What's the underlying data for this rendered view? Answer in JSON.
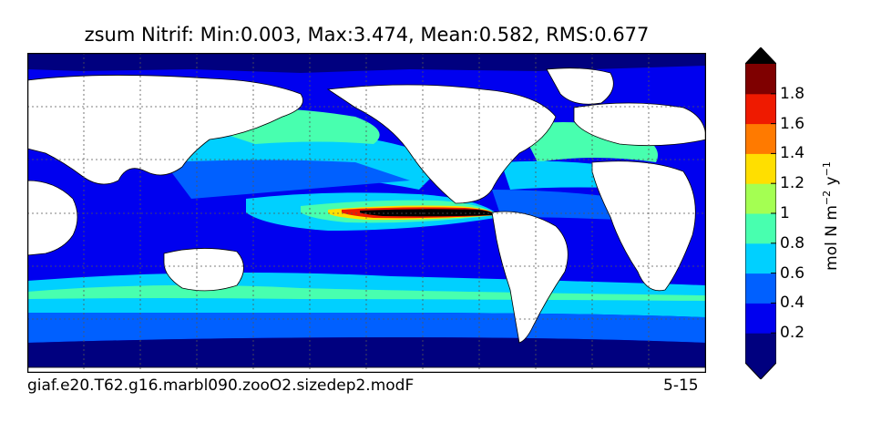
{
  "title": "zsum Nitrif: Min:0.003, Max:3.474, Mean:0.582, RMS:0.677",
  "footer": {
    "run_name": "giaf.e20.T62.g16.marbl090.zooO2.sizedep2.modF",
    "depth_range": "5-15"
  },
  "colorbar": {
    "label": "mol N m",
    "label_exp1": "−2",
    "label_mid": " y",
    "label_exp2": "−1",
    "ticks": [
      "0.2",
      "0.4",
      "0.6",
      "0.8",
      "1",
      "1.2",
      "1.4",
      "1.6",
      "1.8"
    ],
    "levels": [
      0,
      0.2,
      0.4,
      0.6,
      0.8,
      1.0,
      1.2,
      1.4,
      1.6,
      1.8,
      2.0
    ],
    "colors": [
      "#00007f",
      "#0000ef",
      "#0060ff",
      "#00d0ff",
      "#48ffaf",
      "#a4ff52",
      "#ffdf00",
      "#ff7a00",
      "#ef1a00",
      "#7f0000"
    ],
    "under_color": "#00007f",
    "over_color": "#000000",
    "extend": "both"
  },
  "map": {
    "projection": "equirectangular",
    "land_color": "#ffffff",
    "gridlines": "dotted",
    "coastline_color": "#000000"
  }
}
